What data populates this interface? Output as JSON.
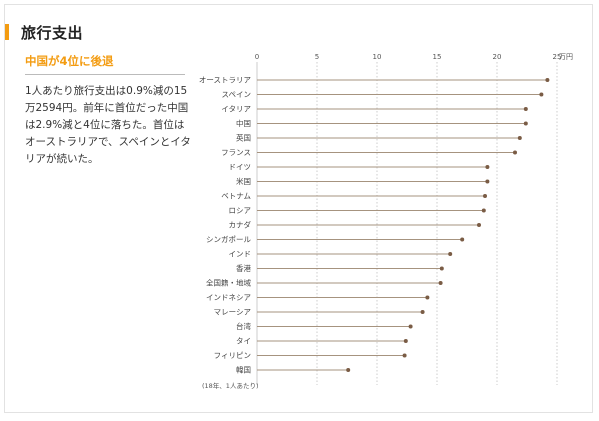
{
  "header": {
    "title": "旅行支出"
  },
  "article": {
    "subhead": "中国が4位に後退",
    "body": "1人あたり旅行支出は0.9%減の15万2594円。前年に首位だった中国は2.9%減と4位に落ちた。首位はオーストラリアで、スペインとイタリアが続いた。"
  },
  "colors": {
    "accent": "#f39c12",
    "line": "#a6937f",
    "dot": "#7a5c45",
    "grid": "#cccccc"
  },
  "chart_data": {
    "type": "lollipop",
    "unit": "万円",
    "note": "(18年、1人あたり)",
    "xlim": [
      0,
      25
    ],
    "ticks": [
      0,
      5,
      10,
      15,
      20,
      25
    ],
    "categories": [
      "オーストラリア",
      "スペイン",
      "イタリア",
      "中国",
      "英国",
      "フランス",
      "ドイツ",
      "米国",
      "ベトナム",
      "ロシア",
      "カナダ",
      "シンガポール",
      "インド",
      "香港",
      "全国籍・地域",
      "インドネシア",
      "マレーシア",
      "台湾",
      "タイ",
      "フィリピン",
      "韓国"
    ],
    "values": [
      24.2,
      23.7,
      22.4,
      22.4,
      21.9,
      21.5,
      19.2,
      19.2,
      19.0,
      18.9,
      18.5,
      17.1,
      16.1,
      15.4,
      15.3,
      14.2,
      13.8,
      12.8,
      12.4,
      12.3,
      7.6
    ]
  }
}
